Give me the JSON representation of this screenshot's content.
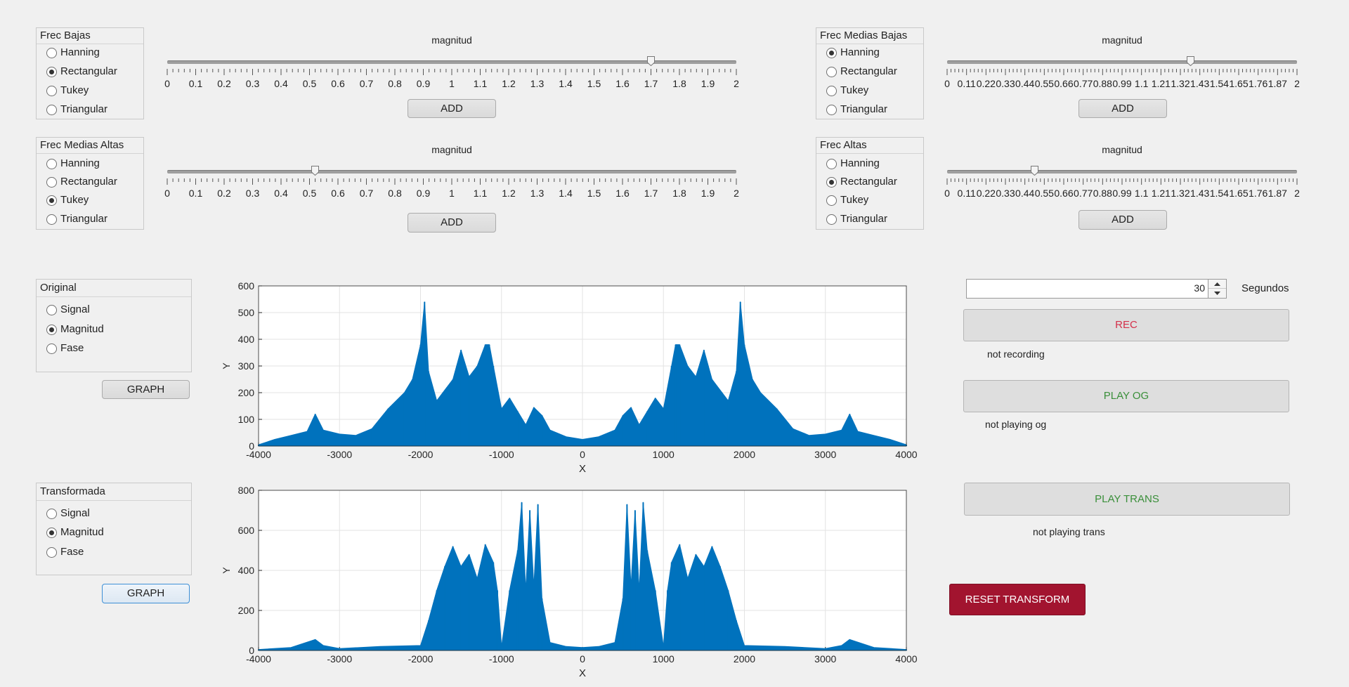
{
  "filters": [
    {
      "title": "Frec Bajas",
      "options": [
        "Hanning",
        "Rectangular",
        "Tukey",
        "Triangular"
      ],
      "selected": 1,
      "slider": {
        "label": "magnitud",
        "min": 0,
        "max": 2,
        "value": 1.7,
        "ticks": [
          "0",
          "0.1",
          "0.2",
          "0.3",
          "0.4",
          "0.5",
          "0.6",
          "0.7",
          "0.8",
          "0.9",
          "1",
          "1.1",
          "1.2",
          "1.3",
          "1.4",
          "1.5",
          "1.6",
          "1.7",
          "1.8",
          "1.9",
          "2"
        ]
      },
      "button": "ADD"
    },
    {
      "title": "Frec Medias Bajas",
      "options": [
        "Hanning",
        "Rectangular",
        "Tukey",
        "Triangular"
      ],
      "selected": 0,
      "slider": {
        "label": "magnitud",
        "min": 0,
        "max": 2,
        "value": 1.39,
        "ticks": [
          "0",
          "0.11",
          "0.22",
          "0.33",
          "0.44",
          "0.55",
          "0.66",
          "0.77",
          "0.88",
          "0.99",
          "1.1",
          "1.21",
          "1.32",
          "1.43",
          "1.54",
          "1.65",
          "1.76",
          "1.87",
          "2"
        ]
      },
      "button": "ADD"
    },
    {
      "title": "Frec Medias Altas",
      "options": [
        "Hanning",
        "Rectangular",
        "Tukey",
        "Triangular"
      ],
      "selected": 2,
      "slider": {
        "label": "magnitud",
        "min": 0,
        "max": 2,
        "value": 0.52,
        "ticks": [
          "0",
          "0.1",
          "0.2",
          "0.3",
          "0.4",
          "0.5",
          "0.6",
          "0.7",
          "0.8",
          "0.9",
          "1",
          "1.1",
          "1.2",
          "1.3",
          "1.4",
          "1.5",
          "1.6",
          "1.7",
          "1.8",
          "1.9",
          "2"
        ]
      },
      "button": "ADD"
    },
    {
      "title": "Frec Altas",
      "options": [
        "Hanning",
        "Rectangular",
        "Tukey",
        "Triangular"
      ],
      "selected": 1,
      "slider": {
        "label": "magnitud",
        "min": 0,
        "max": 2,
        "value": 0.5,
        "ticks": [
          "0",
          "0.11",
          "0.22",
          "0.33",
          "0.44",
          "0.55",
          "0.66",
          "0.77",
          "0.88",
          "0.99",
          "1.1",
          "1.21",
          "1.32",
          "1.43",
          "1.54",
          "1.65",
          "1.76",
          "1.87",
          "2"
        ]
      },
      "button": "ADD"
    }
  ],
  "views": [
    {
      "title": "Original",
      "options": [
        "Signal",
        "Magnitud",
        "Fase"
      ],
      "selected": 1,
      "button": "GRAPH"
    },
    {
      "title": "Transformada",
      "options": [
        "Signal",
        "Magnitud",
        "Fase"
      ],
      "selected": 1,
      "button": "GRAPH"
    }
  ],
  "controls": {
    "duration_value": "30",
    "duration_unit": "Segundos",
    "rec_label": "REC",
    "rec_status": "not recording",
    "play_og_label": "PLAY OG",
    "play_og_status": "not playing og",
    "play_trans_label": "PLAY TRANS",
    "play_trans_status": "not playing trans",
    "reset_label": "RESET TRANSFORM"
  },
  "colors": {
    "rec": "#d4304a",
    "play": "#3a8f3a",
    "reset": "#a2142f",
    "series": "#0072bd"
  },
  "chart_data": [
    {
      "type": "area",
      "xlabel": "X",
      "ylabel": "Y",
      "xlim": [
        -4000,
        4000
      ],
      "ylim": [
        0,
        600
      ],
      "xticks": [
        "-4000",
        "-3000",
        "-2000",
        "-1000",
        "0",
        "1000",
        "2000",
        "3000",
        "4000"
      ],
      "yticks": [
        "0",
        "100",
        "200",
        "300",
        "400",
        "500",
        "600"
      ],
      "grid": true,
      "x": [
        -4000,
        -3800,
        -3600,
        -3400,
        -3300,
        -3200,
        -3000,
        -2800,
        -2600,
        -2400,
        -2200,
        -2100,
        -2000,
        -1950,
        -1900,
        -1800,
        -1600,
        -1500,
        -1400,
        -1300,
        -1200,
        -1150,
        -1100,
        -1000,
        -900,
        -800,
        -700,
        -600,
        -500,
        -400,
        -200,
        0,
        200,
        400,
        500,
        600,
        700,
        800,
        900,
        1000,
        1100,
        1150,
        1200,
        1300,
        1400,
        1500,
        1600,
        1800,
        1900,
        1950,
        2000,
        2100,
        2200,
        2400,
        2600,
        2800,
        3000,
        3200,
        3300,
        3400,
        3600,
        3800,
        4000
      ],
      "y": [
        5,
        25,
        40,
        55,
        120,
        60,
        45,
        40,
        65,
        140,
        200,
        250,
        380,
        540,
        280,
        170,
        250,
        360,
        260,
        300,
        380,
        380,
        300,
        140,
        180,
        130,
        80,
        145,
        115,
        60,
        35,
        25,
        35,
        60,
        115,
        145,
        80,
        130,
        180,
        140,
        300,
        380,
        380,
        300,
        260,
        360,
        250,
        170,
        280,
        540,
        380,
        250,
        200,
        140,
        65,
        40,
        45,
        60,
        120,
        55,
        40,
        25,
        5
      ]
    },
    {
      "type": "area",
      "xlabel": "X",
      "ylabel": "Y",
      "xlim": [
        -4000,
        4000
      ],
      "ylim": [
        0,
        800
      ],
      "xticks": [
        "-4000",
        "-3000",
        "-2000",
        "-1000",
        "0",
        "1000",
        "2000",
        "3000",
        "4000"
      ],
      "yticks": [
        "0",
        "200",
        "400",
        "600",
        "800"
      ],
      "grid": true,
      "x": [
        -4000,
        -3600,
        -3300,
        -3200,
        -3000,
        -2500,
        -2000,
        -1900,
        -1800,
        -1700,
        -1600,
        -1500,
        -1400,
        -1300,
        -1200,
        -1100,
        -1050,
        -1000,
        -900,
        -800,
        -750,
        -700,
        -650,
        -600,
        -550,
        -500,
        -400,
        -200,
        0,
        200,
        400,
        500,
        550,
        600,
        650,
        700,
        750,
        800,
        900,
        1000,
        1050,
        1100,
        1200,
        1300,
        1400,
        1500,
        1600,
        1700,
        1800,
        1900,
        2000,
        2500,
        3000,
        3200,
        3300,
        3600,
        4000
      ],
      "y": [
        5,
        15,
        55,
        25,
        10,
        20,
        25,
        150,
        300,
        420,
        520,
        420,
        480,
        360,
        530,
        440,
        300,
        20,
        300,
        500,
        740,
        300,
        700,
        320,
        730,
        260,
        40,
        20,
        15,
        20,
        40,
        260,
        730,
        320,
        700,
        300,
        740,
        500,
        300,
        20,
        300,
        440,
        530,
        360,
        480,
        420,
        520,
        420,
        300,
        150,
        25,
        20,
        10,
        25,
        55,
        15,
        5
      ]
    }
  ]
}
